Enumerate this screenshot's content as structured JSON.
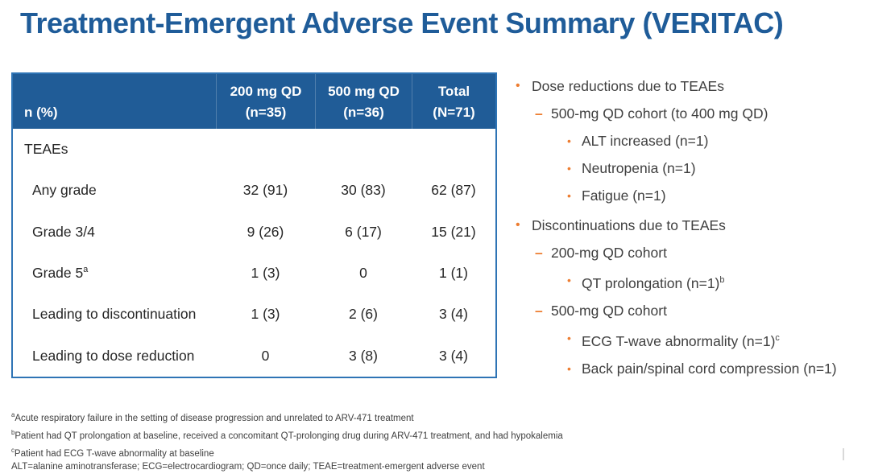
{
  "colors": {
    "title_blue": "#1F5C99",
    "header_bg": "#205C97",
    "table_border": "#2E74B5",
    "accent_orange": "#ED7D31",
    "body_text": "#262626",
    "bullet_text": "#404040"
  },
  "title": "Treatment-Emergent Adverse Event Summary (VERITAC)",
  "table": {
    "corner_label": "n (%)",
    "columns": [
      {
        "line1": "200 mg QD",
        "line2": "(n=35)"
      },
      {
        "line1": "500 mg QD",
        "line2": "(n=36)"
      },
      {
        "line1": "Total",
        "line2": "(N=71)"
      }
    ],
    "rows": [
      {
        "label": "TEAEs",
        "values": [
          "",
          "",
          ""
        ]
      },
      {
        "label": "Any grade",
        "values": [
          "32 (91)",
          "30 (83)",
          "62 (87)"
        ]
      },
      {
        "label": "Grade 3/4",
        "values": [
          "9 (26)",
          "6 (17)",
          "15 (21)"
        ]
      },
      {
        "label": "Grade 5",
        "label_sup": "a",
        "values": [
          "1 (3)",
          "0",
          "1 (1)"
        ]
      },
      {
        "label": "Leading to discontinuation",
        "values": [
          "1 (3)",
          "2 (6)",
          "3 (4)"
        ]
      },
      {
        "label": "Leading to dose reduction",
        "values": [
          "0",
          "3 (8)",
          "3 (4)"
        ]
      }
    ]
  },
  "markers": {
    "bullet": "•",
    "dash": "–"
  },
  "bullets": [
    {
      "text": "Dose reductions due to TEAEs"
    },
    {
      "text": "500-mg QD cohort (to 400 mg QD)"
    },
    {
      "text": "ALT increased (n=1)"
    },
    {
      "text": "Neutropenia (n=1)"
    },
    {
      "text": "Fatigue (n=1)"
    },
    {
      "text": "Discontinuations due to TEAEs"
    },
    {
      "text": "200-mg QD cohort"
    },
    {
      "text": "QT prolongation (n=1)",
      "sup": "b"
    },
    {
      "text": "500-mg QD cohort"
    },
    {
      "text": "ECG T-wave abnormality (n=1)",
      "sup": "c"
    },
    {
      "text": "Back pain/spinal cord compression (n=1)"
    }
  ],
  "footnotes": [
    {
      "sup": "a",
      "text": "Acute respiratory failure in the setting of disease progression and unrelated to ARV-471 treatment"
    },
    {
      "sup": "b",
      "text": "Patient had QT prolongation at baseline, received a concomitant QT-prolonging drug during ARV-471 treatment, and had hypokalemia"
    },
    {
      "sup": "c",
      "text": "Patient had ECG T-wave abnormality at baseline"
    },
    {
      "sup": "",
      "text": "ALT=alanine aminotransferase; ECG=electrocardiogram; QD=once daily; TEAE=treatment-emergent adverse event"
    }
  ]
}
